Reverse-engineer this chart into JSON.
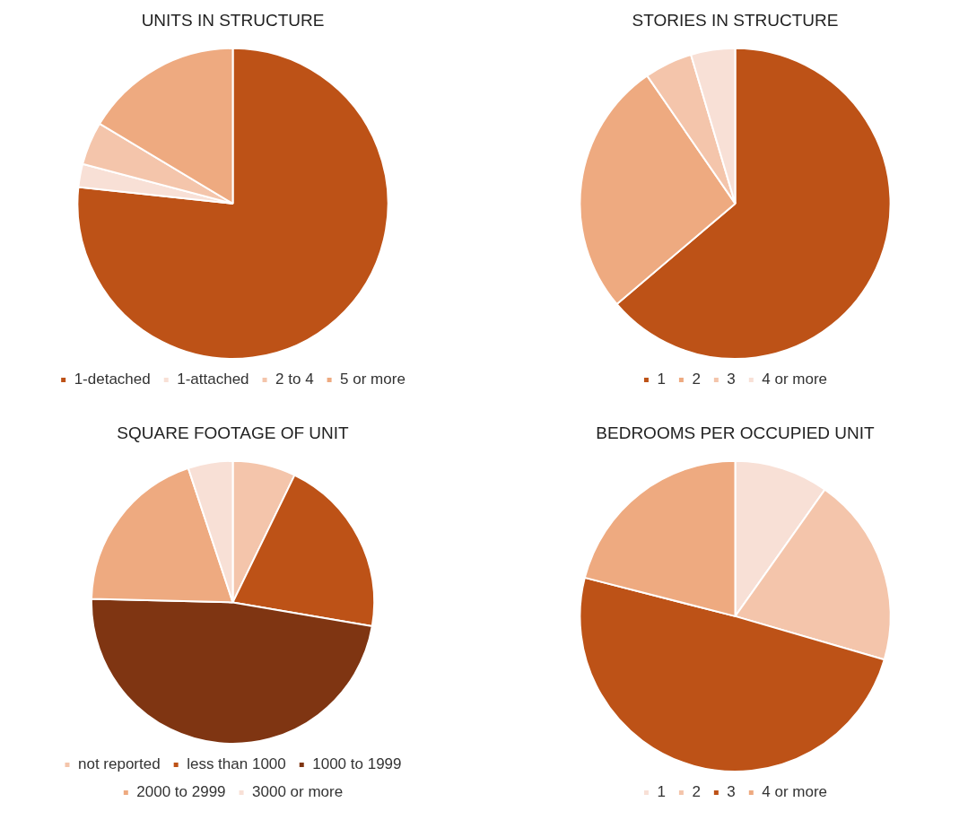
{
  "chart_data": [
    {
      "type": "pie",
      "title": "UNITS IN STRUCTURE",
      "categories": [
        "1-detached",
        "1-attached",
        "2 to 4",
        "5 or more"
      ],
      "values": [
        76.7,
        2.4,
        4.5,
        16.4
      ],
      "colors": [
        "#bd5217",
        "#f8e0d6",
        "#f4c5ab",
        "#eeaa80"
      ],
      "legend": "bottom"
    },
    {
      "type": "pie",
      "title": "STORIES IN STRUCTURE",
      "categories": [
        "1",
        "2",
        "3",
        "4 or more"
      ],
      "values": [
        63.8,
        26.6,
        5,
        4.6
      ],
      "colors": [
        "#bd5217",
        "#eeaa80",
        "#f4c5ab",
        "#f8e0d6"
      ],
      "legend": "bottom"
    },
    {
      "type": "pie",
      "title": "SQUARE FOOTAGE OF UNIT",
      "categories": [
        "not reported",
        "less than 1000",
        "1000 to 1999",
        "2000 to 2999",
        "3000 or more"
      ],
      "values": [
        7.2,
        20.5,
        47.7,
        19.5,
        5.1
      ],
      "colors": [
        "#f4c5ab",
        "#bd5217",
        "#7f3512",
        "#eeaa80",
        "#f8e0d6"
      ],
      "legend": "bottom"
    },
    {
      "type": "pie",
      "title": "BEDROOMS PER OCCUPIED UNIT",
      "categories": [
        "1",
        "2",
        "3",
        "4 or more"
      ],
      "values": [
        9.8,
        19.7,
        49.5,
        21
      ],
      "colors": [
        "#f8e0d6",
        "#f4c5ab",
        "#bd5217",
        "#eeaa80"
      ],
      "legend": "bottom"
    }
  ]
}
